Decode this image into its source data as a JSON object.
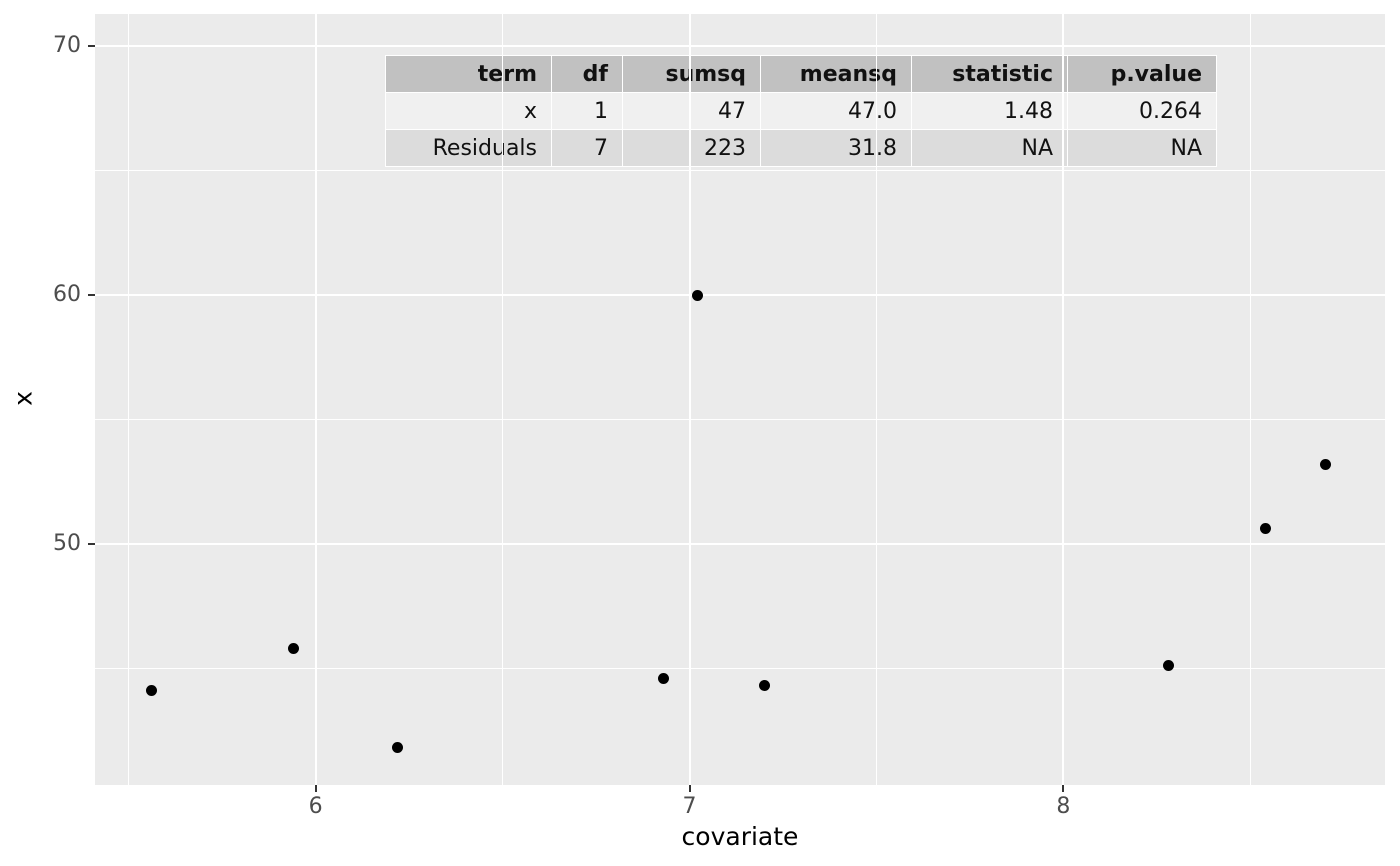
{
  "chart_data": {
    "type": "scatter",
    "title": "",
    "xlabel": "covariate",
    "ylabel": "x",
    "xlim": [
      5.41,
      8.86
    ],
    "ylim": [
      40.3,
      71.3
    ],
    "x_ticks": [
      6,
      7,
      8
    ],
    "y_ticks": [
      50,
      60,
      70
    ],
    "x_minor_ticks": [
      5.5,
      6.5,
      7.5,
      8.5
    ],
    "y_minor_ticks": [
      45,
      55,
      65
    ],
    "grid": "on",
    "legend": "none",
    "panel_bg": "#EBEBEB",
    "grid_color": "#FFFFFF",
    "point_color": "#000000",
    "points": [
      {
        "x": 5.56,
        "y": 44.1
      },
      {
        "x": 5.94,
        "y": 45.8
      },
      {
        "x": 6.22,
        "y": 41.8
      },
      {
        "x": 6.93,
        "y": 44.6
      },
      {
        "x": 7.02,
        "y": 60.0
      },
      {
        "x": 7.2,
        "y": 44.3
      },
      {
        "x": 8.28,
        "y": 45.1
      },
      {
        "x": 8.54,
        "y": 50.6
      },
      {
        "x": 8.7,
        "y": 53.2
      }
    ]
  },
  "anova_table": {
    "headers": [
      "term",
      "df",
      "sumsq",
      "meansq",
      "statistic",
      "p.value"
    ],
    "rows": [
      [
        "x",
        "1",
        "47",
        "47.0",
        "1.48",
        "0.264"
      ],
      [
        "Residuals",
        "7",
        "223",
        "31.8",
        "NA",
        "NA"
      ]
    ]
  }
}
